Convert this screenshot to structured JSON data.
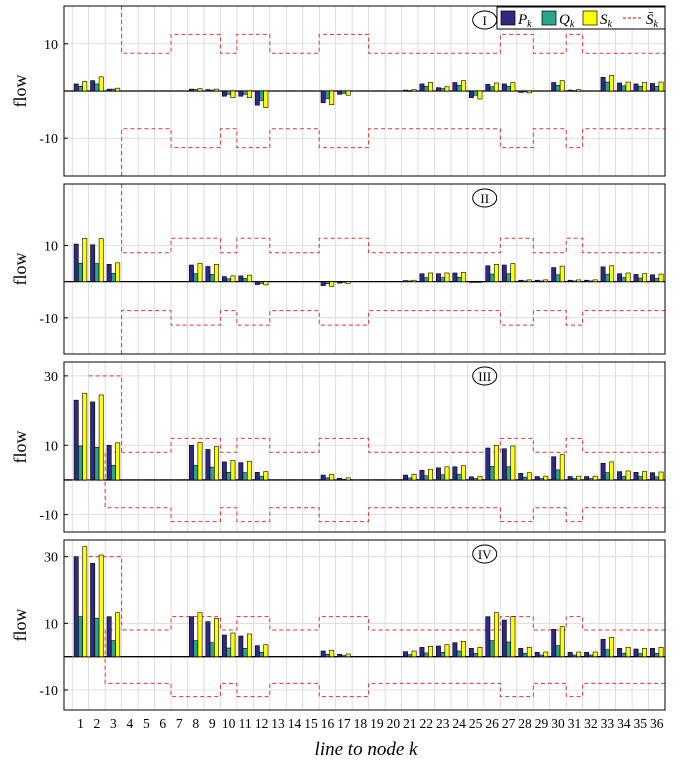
{
  "chart_data": {
    "type": "bar",
    "xlabel": "line to node k",
    "ylabel": "flow",
    "x": [
      1,
      2,
      3,
      4,
      5,
      6,
      7,
      8,
      9,
      10,
      11,
      12,
      13,
      14,
      15,
      16,
      17,
      18,
      19,
      20,
      21,
      22,
      23,
      24,
      25,
      26,
      27,
      28,
      29,
      30,
      31,
      32,
      33,
      34,
      35,
      36
    ],
    "legend": {
      "position": "top-right",
      "entries": [
        {
          "key": "P",
          "label": "P_k",
          "color": "#2e2a82"
        },
        {
          "key": "Q",
          "label": "Q_k",
          "color": "#2aa58e"
        },
        {
          "key": "S",
          "label": "S_k",
          "color": "#ffff00"
        },
        {
          "key": "Sbar",
          "label": "S̄_k",
          "color": "#e8322e",
          "style": "dashed"
        }
      ]
    },
    "limit": [
      0,
      0,
      0,
      8,
      8,
      8,
      8,
      12,
      12,
      12,
      8,
      12,
      12,
      8,
      8,
      8,
      12,
      12,
      12,
      8,
      8,
      8,
      8,
      8,
      8,
      8,
      8,
      12,
      12,
      8,
      8,
      12,
      8,
      8,
      8,
      8,
      8
    ],
    "panels": [
      {
        "label": "I",
        "ylim": [
          -18,
          18
        ],
        "yticks": [
          10,
          -10
        ],
        "ytick_labels": [
          "10",
          "-10"
        ],
        "limit_starts_at": 3,
        "series": [
          {
            "key": "P",
            "values": [
              1.5,
              2.2,
              0.4,
              0,
              0,
              0,
              0,
              0.4,
              0.3,
              -1.1,
              -1.1,
              -3.0,
              0,
              0,
              0,
              -2.5,
              -0.7,
              0,
              0,
              0,
              0.2,
              1.5,
              0.7,
              1.8,
              -1.4,
              1.4,
              1.5,
              -0.3,
              0,
              1.8,
              0.2,
              0,
              2.9,
              1.7,
              1.5,
              1.6
            ]
          },
          {
            "key": "Q",
            "values": [
              1.0,
              1.5,
              0.4,
              0,
              0,
              0,
              0,
              0.3,
              0.2,
              -0.7,
              -0.7,
              -2.0,
              0,
              0,
              0,
              -1.6,
              -0.5,
              0,
              0,
              0,
              0.1,
              1.0,
              0.5,
              1.2,
              -0.9,
              0.9,
              1.0,
              -0.2,
              0,
              1.2,
              0.1,
              0,
              1.9,
              1.1,
              1.0,
              1.0
            ]
          },
          {
            "key": "S",
            "values": [
              2.0,
              3.0,
              0.6,
              0,
              0,
              0,
              0,
              0.5,
              0.4,
              -1.4,
              -1.4,
              -3.5,
              0,
              0,
              0,
              -2.9,
              -0.9,
              0,
              0,
              0,
              0.3,
              1.8,
              0.9,
              2.2,
              -1.7,
              1.7,
              1.8,
              -0.4,
              0,
              2.2,
              0.3,
              0,
              3.3,
              1.9,
              1.8,
              1.9
            ]
          }
        ]
      },
      {
        "label": "II",
        "ylim": [
          -20,
          27
        ],
        "yticks": [
          10,
          -10
        ],
        "ytick_labels": [
          "10",
          "-10"
        ],
        "limit_starts_at": 3,
        "series": [
          {
            "key": "P",
            "values": [
              10.4,
              10.2,
              4.8,
              0,
              0,
              0,
              0,
              4.6,
              4.2,
              1.4,
              1.6,
              -0.8,
              0,
              0,
              0,
              -1.1,
              -0.4,
              0,
              0,
              0,
              0.3,
              2.2,
              2.2,
              2.4,
              -0.2,
              4.4,
              4.6,
              0.4,
              0.4,
              3.9,
              0.4,
              0.4,
              4.1,
              2.2,
              2.0,
              1.9
            ]
          },
          {
            "key": "Q",
            "values": [
              5.1,
              5.0,
              2.3,
              0,
              0,
              0,
              0,
              2.2,
              2.0,
              0.8,
              0.9,
              -0.5,
              0,
              0,
              0,
              -0.6,
              -0.2,
              0,
              0,
              0,
              0.2,
              1.1,
              1.1,
              1.2,
              -0.1,
              2.1,
              2.2,
              0.2,
              0.2,
              1.9,
              0.2,
              0.2,
              2.0,
              1.1,
              1.0,
              0.9
            ]
          },
          {
            "key": "S",
            "values": [
              12.0,
              11.9,
              5.2,
              0,
              0,
              0,
              0,
              5.1,
              4.8,
              1.6,
              1.8,
              -0.9,
              0,
              0,
              0,
              -1.3,
              -0.5,
              0,
              0,
              0,
              0.4,
              2.4,
              2.4,
              2.6,
              -0.2,
              4.8,
              5.0,
              0.5,
              0.5,
              4.3,
              0.5,
              0.5,
              4.4,
              2.4,
              2.2,
              2.1
            ]
          }
        ]
      },
      {
        "label": "III",
        "ylim": [
          -15,
          34
        ],
        "yticks": [
          30,
          10,
          -10
        ],
        "ytick_labels": [
          "30",
          "10",
          "-10"
        ],
        "limit_starts_at": 0,
        "series": [
          {
            "key": "P",
            "values": [
              23.0,
              22.5,
              10.0,
              0,
              0,
              0,
              0,
              10.0,
              8.8,
              5.2,
              5.0,
              2.2,
              0,
              0,
              0,
              1.4,
              0.5,
              0,
              0,
              0,
              1.4,
              2.8,
              3.5,
              3.8,
              0.9,
              9.2,
              9.0,
              1.9,
              1.0,
              6.7,
              1.0,
              1.0,
              4.8,
              2.4,
              2.2,
              2.1
            ]
          },
          {
            "key": "Q",
            "values": [
              9.8,
              9.4,
              4.2,
              0,
              0,
              0,
              0,
              4.2,
              3.7,
              2.2,
              2.1,
              1.0,
              0,
              0,
              0,
              0.6,
              0.2,
              0,
              0,
              0,
              0.6,
              1.2,
              1.5,
              1.6,
              0.4,
              3.9,
              3.8,
              0.8,
              0.4,
              2.9,
              0.4,
              0.4,
              2.1,
              1.0,
              1.0,
              0.9
            ]
          },
          {
            "key": "S",
            "values": [
              25.0,
              24.5,
              10.7,
              0,
              0,
              0,
              0,
              10.8,
              9.6,
              5.6,
              5.4,
              2.4,
              0,
              0,
              0,
              1.6,
              0.6,
              0,
              0,
              0,
              1.6,
              3.1,
              3.8,
              4.1,
              1.0,
              10.0,
              9.8,
              2.1,
              1.1,
              7.3,
              1.1,
              1.1,
              5.2,
              2.6,
              2.4,
              2.3
            ]
          }
        ]
      },
      {
        "label": "IV",
        "ylim": [
          -16,
          35
        ],
        "yticks": [
          30,
          10,
          -10
        ],
        "ytick_labels": [
          "30",
          "10",
          "-10"
        ],
        "limit_starts_at": 0,
        "series": [
          {
            "key": "P",
            "values": [
              30.0,
              28.0,
              12.0,
              0,
              0,
              0,
              0,
              12.0,
              10.5,
              6.5,
              6.2,
              3.3,
              0,
              0,
              0,
              1.7,
              0.7,
              0,
              0,
              0,
              1.5,
              2.8,
              3.2,
              4.2,
              2.5,
              12.0,
              11.0,
              2.5,
              1.3,
              8.2,
              1.3,
              1.3,
              5.2,
              2.5,
              2.3,
              2.5
            ]
          },
          {
            "key": "Q",
            "values": [
              12.0,
              11.5,
              4.8,
              0,
              0,
              0,
              0,
              4.8,
              4.2,
              2.6,
              2.5,
              1.3,
              0,
              0,
              0,
              0.7,
              0.3,
              0,
              0,
              0,
              0.6,
              1.1,
              1.3,
              1.7,
              1.0,
              4.8,
              4.4,
              1.0,
              0.5,
              3.3,
              0.5,
              0.5,
              2.1,
              1.0,
              0.9,
              1.0
            ]
          },
          {
            "key": "S",
            "values": [
              33.0,
              30.5,
              13.2,
              0,
              0,
              0,
              0,
              13.2,
              11.5,
              7.1,
              6.8,
              3.6,
              0,
              0,
              0,
              1.9,
              0.8,
              0,
              0,
              0,
              1.7,
              3.1,
              3.6,
              4.6,
              2.8,
              13.2,
              12.0,
              2.8,
              1.4,
              9.0,
              1.4,
              1.4,
              5.8,
              2.8,
              2.5,
              2.8
            ]
          }
        ]
      }
    ]
  }
}
